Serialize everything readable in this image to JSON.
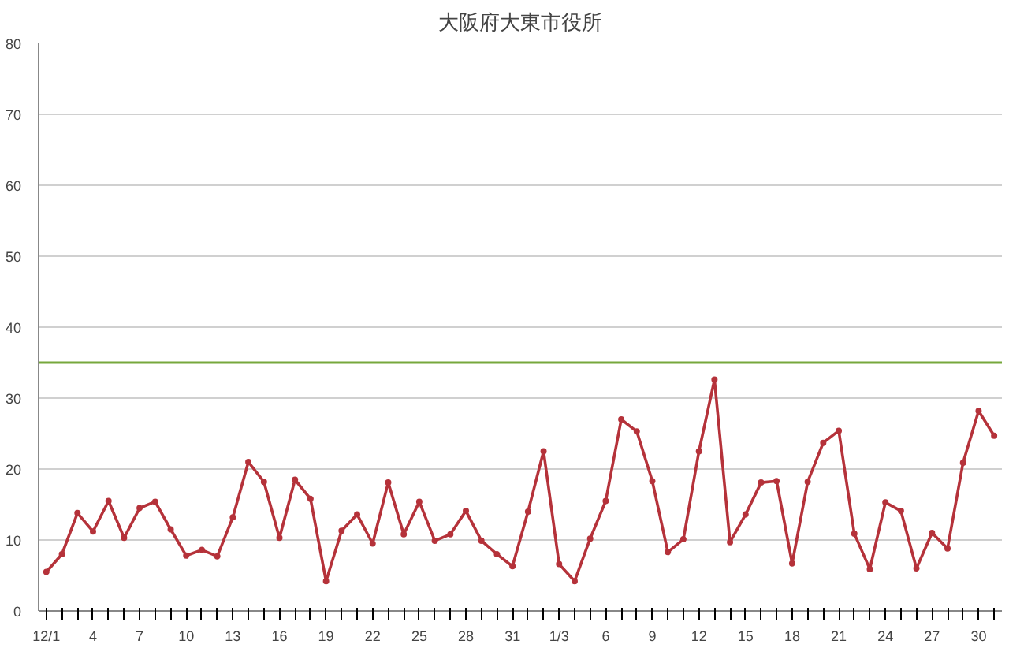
{
  "chart_data": {
    "type": "line",
    "title": "大阪府大東市役所",
    "categories": [
      "12/1",
      null,
      null,
      "4",
      null,
      null,
      "7",
      null,
      null,
      "10",
      null,
      null,
      "13",
      null,
      null,
      "16",
      null,
      null,
      "19",
      null,
      null,
      "22",
      null,
      null,
      "25",
      null,
      null,
      "28",
      null,
      null,
      "31",
      null,
      null,
      "1/3",
      null,
      null,
      "6",
      null,
      null,
      "9",
      null,
      null,
      "12",
      null,
      null,
      "15",
      null,
      null,
      "18",
      null,
      null,
      "21",
      null,
      null,
      "24",
      null,
      null,
      "27",
      null,
      null,
      "30",
      null
    ],
    "series": [
      {
        "color": "#b5323a",
        "values": [
          5.5,
          8,
          13.8,
          11.2,
          15.5,
          10.3,
          14.5,
          15.4,
          11.5,
          7.8,
          8.6,
          7.7,
          13.2,
          21,
          18.2,
          10.3,
          18.5,
          15.8,
          4.2,
          11.3,
          13.6,
          9.5,
          18.1,
          10.8,
          15.4,
          9.9,
          10.8,
          14.1,
          9.9,
          8,
          6.3,
          14,
          22.5,
          6.6,
          4.2,
          10.2,
          15.5,
          27,
          25.3,
          18.3,
          8.3,
          10.1,
          22.5,
          32.6,
          9.7,
          13.6,
          18.1,
          18.3,
          6.7,
          18.2,
          23.7,
          25.4,
          10.9,
          5.9,
          15.3,
          14.1,
          6,
          11,
          8.8,
          20.9,
          28.2,
          24.7
        ]
      }
    ],
    "ylim": [
      0,
      80
    ],
    "yticks": [
      0,
      10,
      20,
      30,
      40,
      50,
      60,
      70,
      80
    ],
    "grid": "y",
    "marker": "circle",
    "line_style": "solid",
    "ref_lines": [
      {
        "axis": "y",
        "value": 35,
        "color": "#77a83c"
      }
    ]
  }
}
